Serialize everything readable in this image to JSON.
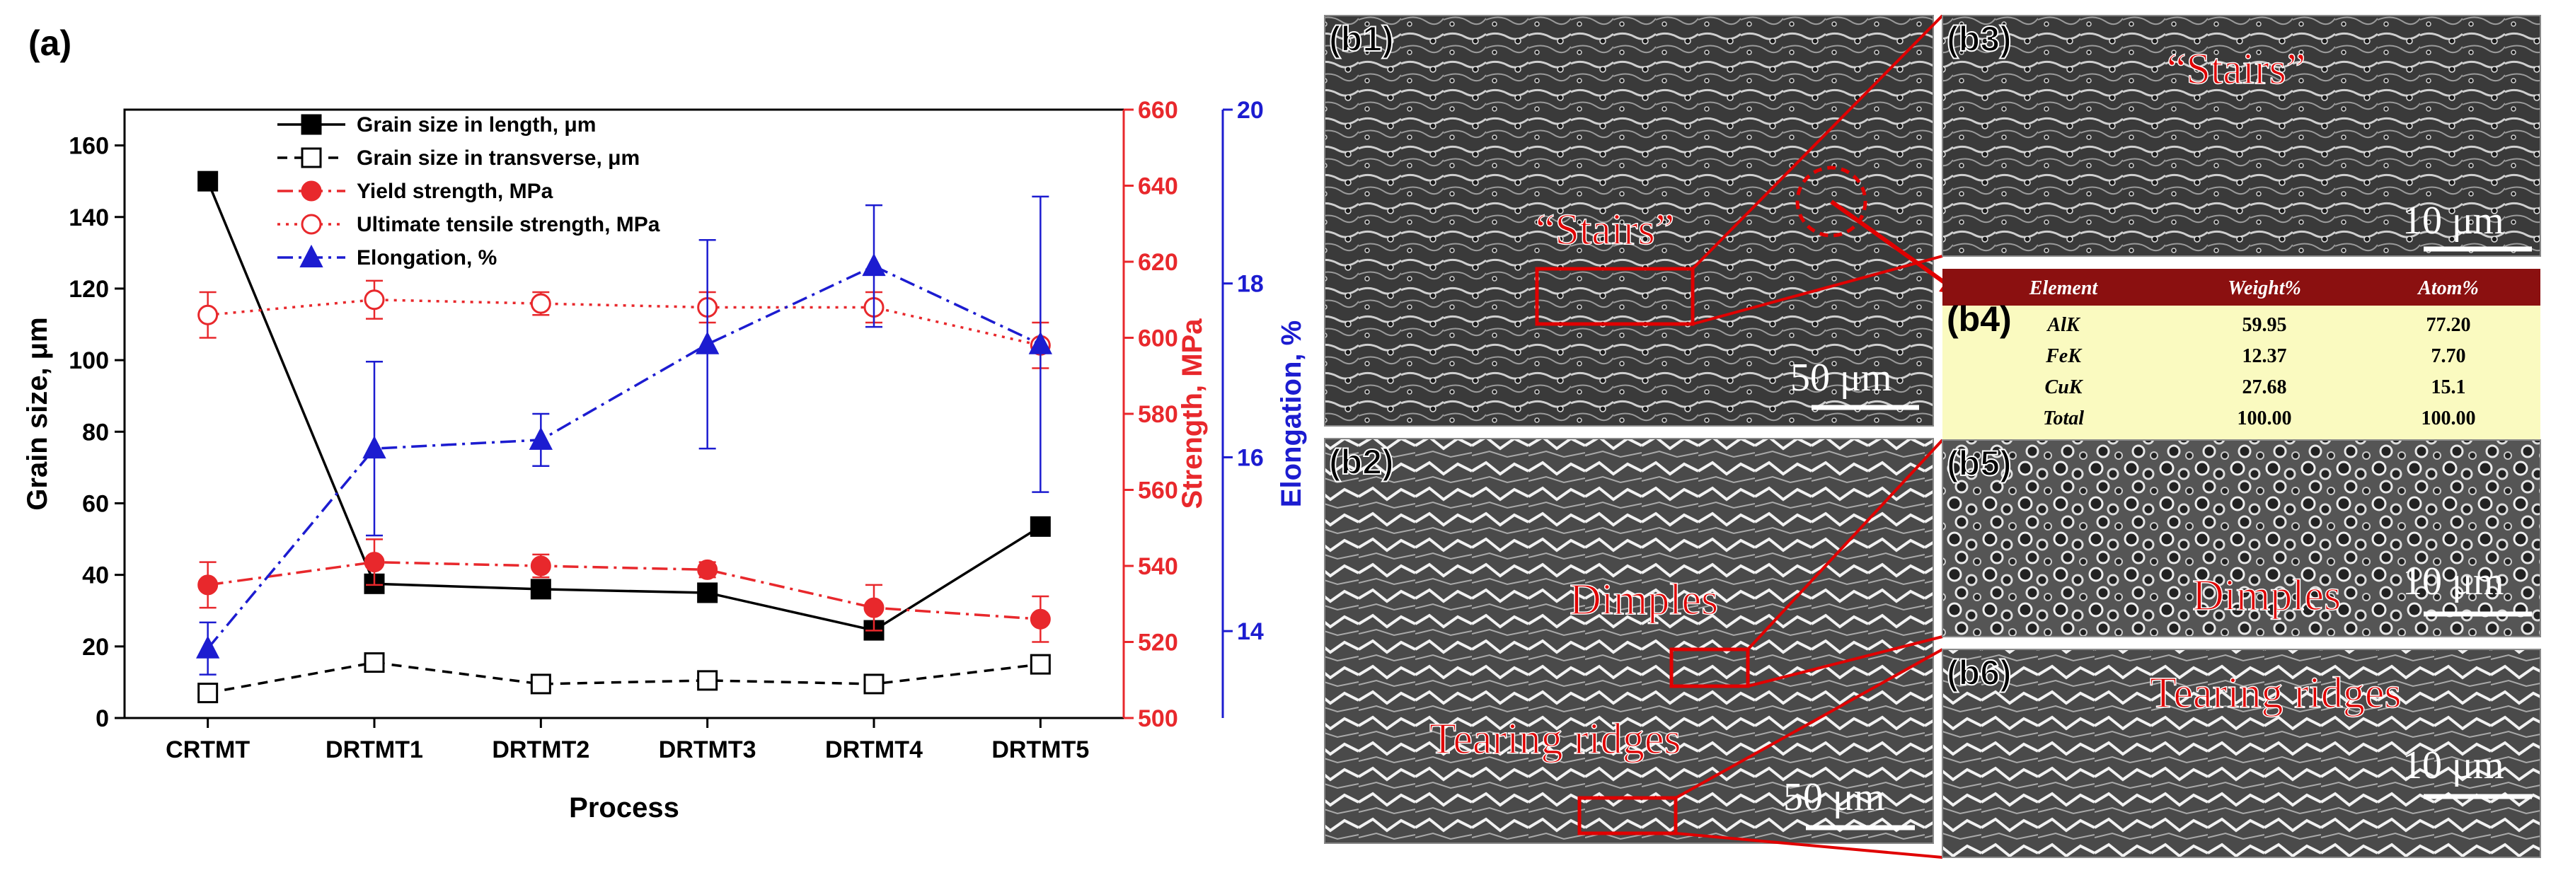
{
  "chart_data": {
    "type": "line",
    "panel_label": "(a)",
    "xlabel": "Process",
    "categories": [
      "CRTMT",
      "DRTMT1",
      "DRTMT2",
      "DRTMT3",
      "DRTMT4",
      "DRTMT5"
    ],
    "axes": {
      "left": {
        "label": "Grain size, μm",
        "ylim": [
          0,
          170
        ],
        "ticks": [
          0,
          20,
          40,
          60,
          80,
          100,
          120,
          140,
          160
        ],
        "color": "#000000"
      },
      "right1": {
        "label": "Strength, MPa",
        "ylim": [
          500,
          660
        ],
        "ticks": [
          500,
          520,
          540,
          560,
          580,
          600,
          620,
          640,
          660
        ],
        "color": "#e8282c"
      },
      "right2": {
        "label": "Elongation, %",
        "ylim": [
          13,
          20
        ],
        "ticks": [
          14,
          16,
          18,
          20
        ],
        "color": "#1c1cd0"
      }
    },
    "series": [
      {
        "name": "Grain size in length, μm",
        "axis": "left",
        "color": "#000000",
        "dash": "solid",
        "marker": "square-filled",
        "values": [
          150,
          37.5,
          36,
          35,
          24.5,
          53.5
        ],
        "errors": [
          0,
          2,
          1,
          1,
          1.5,
          0
        ]
      },
      {
        "name": "Grain size in transverse, μm",
        "axis": "left",
        "color": "#000000",
        "dash": "dashed",
        "marker": "square-open",
        "values": [
          7,
          15.5,
          9.5,
          10.5,
          9.5,
          15
        ],
        "errors": [
          0,
          0,
          0,
          0,
          0,
          0
        ]
      },
      {
        "name": "Yield strength, MPa",
        "axis": "right1",
        "color": "#e8282c",
        "dash": "dashdot",
        "marker": "circle-filled",
        "values": [
          535,
          541,
          540,
          539,
          529,
          526
        ],
        "errors": [
          6,
          6,
          3,
          2,
          6,
          6
        ]
      },
      {
        "name": "Ultimate tensile strength, MPa",
        "axis": "right1",
        "color": "#e8282c",
        "dash": "dotted",
        "marker": "circle-open",
        "values": [
          606,
          610,
          609,
          608,
          608,
          598
        ],
        "errors": [
          6,
          5,
          3,
          4,
          4,
          6
        ]
      },
      {
        "name": "Elongation, %",
        "axis": "right2",
        "color": "#1c1cd0",
        "dash": "dashdot",
        "marker": "triangle-filled",
        "values": [
          13.8,
          16.1,
          16.2,
          17.3,
          18.2,
          17.3
        ],
        "errors": [
          0.3,
          1.0,
          0.3,
          1.2,
          0.7,
          1.7
        ]
      }
    ]
  },
  "micrographs": {
    "b1": {
      "label": "(b1)",
      "annotation": "“Stairs”",
      "scale": "50 μm"
    },
    "b2": {
      "label": "(b2)",
      "annotation_1": "Dimples",
      "annotation_2": "Tearing ridges",
      "scale": "50 μm"
    },
    "b3": {
      "label": "(b3)",
      "annotation": "“Stairs”",
      "scale": "10 μm"
    },
    "b4": {
      "label": "(b4)",
      "headers": [
        "Element",
        "Weight%",
        "Atom%"
      ],
      "rows": [
        [
          "AlK",
          "59.95",
          "77.20"
        ],
        [
          "FeK",
          "12.37",
          "7.70"
        ],
        [
          "CuK",
          "27.68",
          "15.1"
        ],
        [
          "Total",
          "100.00",
          "100.00"
        ]
      ],
      "header_color": "#8b1010",
      "body_color": "#fafac0"
    },
    "b5": {
      "label": "(b5)",
      "annotation": "Dimples",
      "scale": "10 μm"
    },
    "b6": {
      "label": "(b6)",
      "annotation": "Tearing ridges",
      "scale": "10 μm"
    }
  }
}
